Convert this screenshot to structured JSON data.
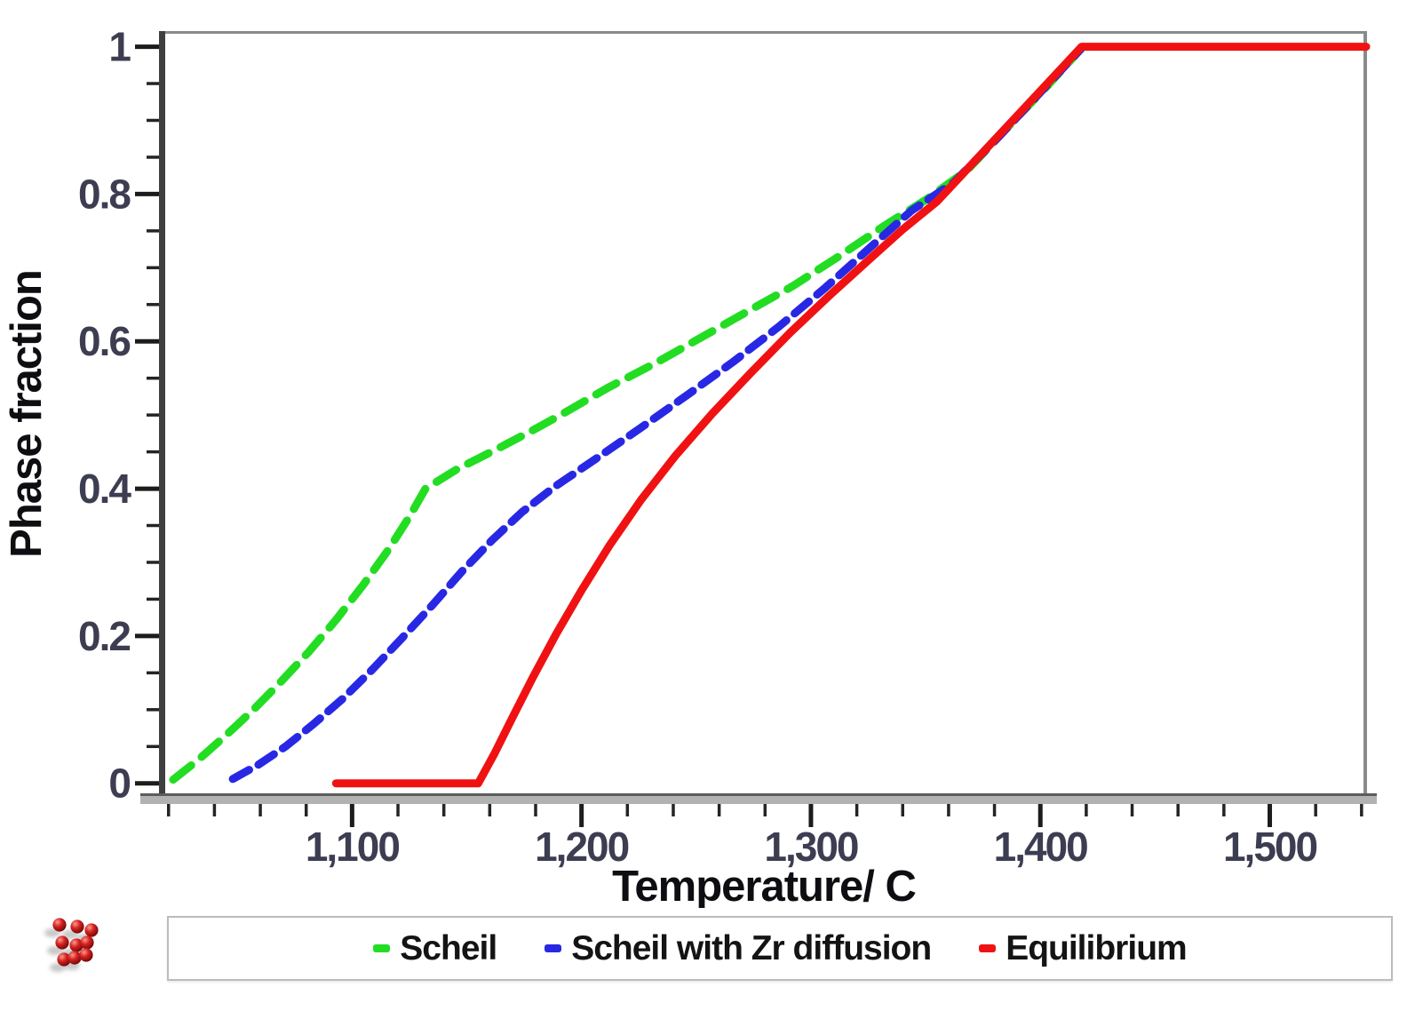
{
  "chart_data": {
    "type": "line",
    "title": "",
    "xlabel": "Temperature/ C",
    "ylabel": "Phase fraction",
    "xlim": [
      1017,
      1542
    ],
    "ylim": [
      -0.016,
      1.02
    ],
    "grid": false,
    "legend_position": "bottom-center",
    "x_major_ticks": [
      {
        "value": 1100,
        "label": "1,100"
      },
      {
        "value": 1200,
        "label": "1,200"
      },
      {
        "value": 1300,
        "label": "1,300"
      },
      {
        "value": 1400,
        "label": "1,400"
      },
      {
        "value": 1500,
        "label": "1,500"
      }
    ],
    "x_minor_ticks": {
      "start": 1020,
      "end": 1540,
      "step": 20
    },
    "y_major_ticks": [
      {
        "value": 0,
        "label": "0"
      },
      {
        "value": 0.2,
        "label": "0.2"
      },
      {
        "value": 0.4,
        "label": "0.4"
      },
      {
        "value": 0.6,
        "label": "0.6"
      },
      {
        "value": 0.8,
        "label": "0.8"
      },
      {
        "value": 1,
        "label": "1"
      }
    ],
    "y_minor_ticks": {
      "start": 0,
      "end": 1,
      "step": 0.05
    },
    "axis_colors": {
      "tick_label": "#3d3d52",
      "axis_title": "#0e0e12",
      "axis_line": "#3f3f3f",
      "frame": "#8a8a8a",
      "bottom_bar": "#b2b2b2"
    },
    "series": [
      {
        "name": "Scheil",
        "color": "#22dd22",
        "style": "dashed",
        "dash": "26 15",
        "points": [
          [
            1022,
            0.005
          ],
          [
            1033,
            0.032
          ],
          [
            1045,
            0.065
          ],
          [
            1057,
            0.1
          ],
          [
            1069,
            0.138
          ],
          [
            1081,
            0.178
          ],
          [
            1093,
            0.222
          ],
          [
            1105,
            0.27
          ],
          [
            1116,
            0.318
          ],
          [
            1125,
            0.362
          ],
          [
            1132,
            0.4
          ],
          [
            1146,
            0.427
          ],
          [
            1162,
            0.452
          ],
          [
            1178,
            0.478
          ],
          [
            1192,
            0.502
          ],
          [
            1212,
            0.538
          ],
          [
            1232,
            0.57
          ],
          [
            1252,
            0.605
          ],
          [
            1272,
            0.64
          ],
          [
            1292,
            0.675
          ],
          [
            1312,
            0.715
          ],
          [
            1332,
            0.757
          ],
          [
            1350,
            0.792
          ],
          [
            1368,
            0.832
          ],
          [
            1388,
            0.898
          ],
          [
            1404,
            0.95
          ],
          [
            1418,
            0.998
          ]
        ]
      },
      {
        "name": "Scheil with Zr diffusion",
        "color": "#2828e4",
        "style": "dashed",
        "dash": "21 12",
        "points": [
          [
            1048,
            0.006
          ],
          [
            1059,
            0.025
          ],
          [
            1071,
            0.05
          ],
          [
            1083,
            0.08
          ],
          [
            1096,
            0.115
          ],
          [
            1109,
            0.155
          ],
          [
            1122,
            0.198
          ],
          [
            1135,
            0.242
          ],
          [
            1148,
            0.288
          ],
          [
            1161,
            0.33
          ],
          [
            1174,
            0.368
          ],
          [
            1188,
            0.402
          ],
          [
            1206,
            0.44
          ],
          [
            1226,
            0.483
          ],
          [
            1246,
            0.527
          ],
          [
            1266,
            0.572
          ],
          [
            1286,
            0.62
          ],
          [
            1306,
            0.672
          ],
          [
            1326,
            0.728
          ],
          [
            1344,
            0.778
          ],
          [
            1362,
            0.815
          ],
          [
            1382,
            0.878
          ],
          [
            1400,
            0.938
          ],
          [
            1418,
            0.998
          ]
        ]
      },
      {
        "name": "Equilibrium",
        "color": "#f01212",
        "style": "solid",
        "dash": "",
        "points": [
          [
            1093,
            0.0
          ],
          [
            1155,
            0.0
          ],
          [
            1162,
            0.04
          ],
          [
            1170,
            0.09
          ],
          [
            1179,
            0.145
          ],
          [
            1189,
            0.203
          ],
          [
            1200,
            0.262
          ],
          [
            1212,
            0.322
          ],
          [
            1226,
            0.385
          ],
          [
            1241,
            0.445
          ],
          [
            1257,
            0.502
          ],
          [
            1274,
            0.558
          ],
          [
            1291,
            0.612
          ],
          [
            1308,
            0.662
          ],
          [
            1325,
            0.71
          ],
          [
            1340,
            0.752
          ],
          [
            1355,
            0.79
          ],
          [
            1418,
            1.0
          ],
          [
            1542,
            1.0
          ]
        ]
      }
    ]
  },
  "footer": {
    "icon": "molecule-cluster-icon",
    "icon_color": "#c81e1e"
  }
}
